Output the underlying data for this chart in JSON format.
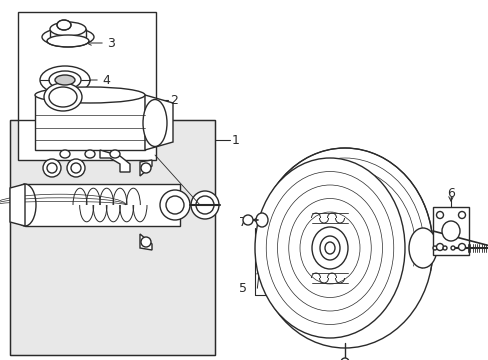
{
  "bg_color": "#ffffff",
  "line_color": "#2a2a2a",
  "gray_bg": "#e0e0e0",
  "fig_width": 4.89,
  "fig_height": 3.6,
  "dpi": 100
}
